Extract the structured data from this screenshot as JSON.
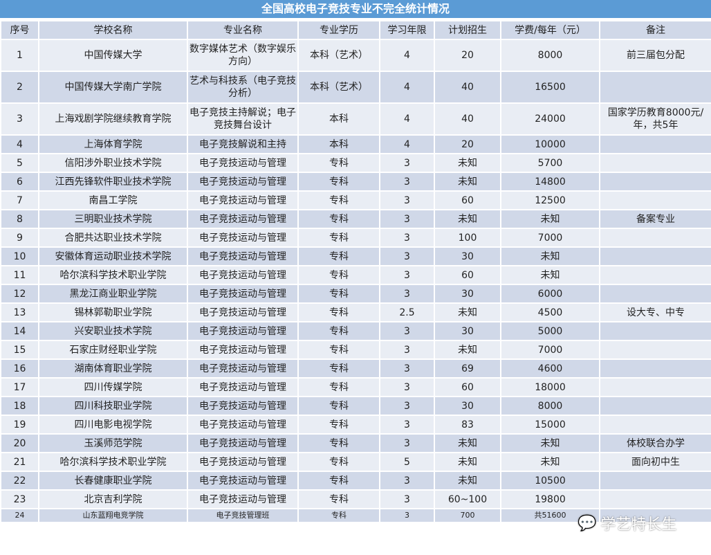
{
  "title": "全国高校电子竞技专业不完全统计情况",
  "headers": [
    "序号",
    "学校名称",
    "专业名称",
    "专业学历",
    "学习年限",
    "计划招生",
    "学费/每年（元）",
    "备注"
  ],
  "rows": [
    [
      "1",
      "中国传媒大学",
      "数字媒体艺术（数字娱乐方向）",
      "本科（艺术）",
      "4",
      "20",
      "8000",
      "前三届包分配"
    ],
    [
      "2",
      "中国传媒大学南广学院",
      "艺术与科技系（电子竞技分析）",
      "本科（艺术）",
      "4",
      "40",
      "16500",
      ""
    ],
    [
      "3",
      "上海戏剧学院继续教育学院",
      "电子竞技主持解说；电子竞技舞台设计",
      "本科",
      "4",
      "40",
      "24000",
      "国家学历教育8000元/年，共5年"
    ],
    [
      "4",
      "上海体育学院",
      "电子竞技解说和主持",
      "本科",
      "4",
      "20",
      "10000",
      ""
    ],
    [
      "5",
      "信阳涉外职业技术学院",
      "电子竞技运动与管理",
      "专科",
      "3",
      "未知",
      "5700",
      ""
    ],
    [
      "6",
      "江西先锋软件职业技术学院",
      "电子竞技运动与管理",
      "专科",
      "3",
      "未知",
      "14800",
      ""
    ],
    [
      "7",
      "南昌工学院",
      "电子竞技运动与管理",
      "专科",
      "3",
      "60",
      "12500",
      ""
    ],
    [
      "8",
      "三明职业技术学院",
      "电子竞技运动与管理",
      "专科",
      "3",
      "未知",
      "未知",
      "备案专业"
    ],
    [
      "9",
      "合肥共达职业技术学院",
      "电子竞技运动与管理",
      "专科",
      "3",
      "100",
      "7000",
      ""
    ],
    [
      "10",
      "安徽体育运动职业技术学院",
      "电子竞技运动与管理",
      "专科",
      "3",
      "30",
      "未知",
      ""
    ],
    [
      "11",
      "哈尔滨科学技术职业学院",
      "电子竞技运动与管理",
      "专科",
      "3",
      "60",
      "未知",
      ""
    ],
    [
      "12",
      "黑龙江商业职业学院",
      "电子竞技运动与管理",
      "专科",
      "3",
      "30",
      "6000",
      ""
    ],
    [
      "13",
      "锡林郭勒职业学院",
      "电子竞技运动与管理",
      "专科",
      "2.5",
      "未知",
      "4500",
      "设大专、中专"
    ],
    [
      "14",
      "兴安职业技术学院",
      "电子竞技运动与管理",
      "专科",
      "3",
      "30",
      "5000",
      ""
    ],
    [
      "15",
      "石家庄财经职业学院",
      "电子竞技运动与管理",
      "专科",
      "3",
      "未知",
      "7000",
      ""
    ],
    [
      "16",
      "湖南体育职业学院",
      "电子竞技运动与管理",
      "专科",
      "3",
      "69",
      "4600",
      ""
    ],
    [
      "17",
      "四川传媒学院",
      "电子竞技运动与管理",
      "专科",
      "3",
      "60",
      "18000",
      ""
    ],
    [
      "18",
      "四川科技职业学院",
      "电子竞技运动与管理",
      "专科",
      "3",
      "30",
      "8000",
      ""
    ],
    [
      "19",
      "四川电影电视学院",
      "电子竞技运动与管理",
      "专科",
      "3",
      "83",
      "15000",
      ""
    ],
    [
      "20",
      "玉溪师范学院",
      "电子竞技运动与管理",
      "专科",
      "3",
      "未知",
      "未知",
      "体校联合办学"
    ],
    [
      "21",
      "哈尔滨科学技术职业学院",
      "电子竞技运动与管理",
      "专科",
      "5",
      "未知",
      "未知",
      "面向初中生"
    ],
    [
      "22",
      "长春健康职业学院",
      "电子竞技运动与管理",
      "专科",
      "3",
      "未知",
      "10500",
      ""
    ],
    [
      "23",
      "北京吉利学院",
      "电子竞技运动与管理",
      "专科",
      "3",
      "60~100",
      "19800",
      ""
    ],
    [
      "24",
      "山东蓝翔电竞学院",
      "电子竞技管理班",
      "专科",
      "3",
      "700",
      "共51600",
      ""
    ]
  ],
  "watermark": "学艺特长生",
  "colors": {
    "title_bg": "#5b9bd5",
    "row_light": "#e9edf4",
    "row_dark": "#d0d8e8"
  }
}
